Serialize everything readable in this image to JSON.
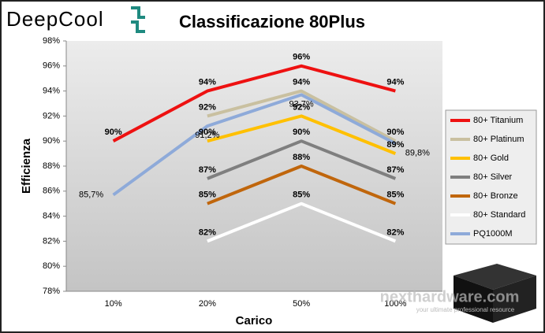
{
  "chart_data": {
    "type": "line",
    "brand": "DeepCool",
    "title": "Classificazione 80Plus",
    "xlabel": "Carico",
    "ylabel": "Efficienza",
    "watermark": "nexthardware.com",
    "watermark_sub": "your ultimate professional resource",
    "categories": [
      "10%",
      "20%",
      "50%",
      "100%"
    ],
    "ylim": [
      78,
      98
    ],
    "yticks": [
      {
        "value": 78,
        "label": "78%"
      },
      {
        "value": 80,
        "label": "80%"
      },
      {
        "value": 82,
        "label": "82%"
      },
      {
        "value": 84,
        "label": "84%"
      },
      {
        "value": 86,
        "label": "86%"
      },
      {
        "value": 88,
        "label": "88%"
      },
      {
        "value": 90,
        "label": "90%"
      },
      {
        "value": 92,
        "label": "92%"
      },
      {
        "value": 94,
        "label": "94%"
      },
      {
        "value": 96,
        "label": "96%"
      },
      {
        "value": 98,
        "label": "98%"
      }
    ],
    "legend": "right",
    "series": [
      {
        "name": "80+ Titanium",
        "color": "#ee1111",
        "values": [
          90,
          94,
          96,
          94
        ],
        "value_labels": [
          "90%",
          "94%",
          "96%",
          "94%"
        ]
      },
      {
        "name": "80+ Platinum",
        "color": "#c9c0a0",
        "values": [
          null,
          92,
          94,
          90
        ],
        "value_labels": [
          null,
          "92%",
          "94%",
          "90%"
        ]
      },
      {
        "name": "80+ Gold",
        "color": "#ffc000",
        "values": [
          null,
          90,
          92,
          89
        ],
        "value_labels": [
          null,
          "90%",
          "92%",
          "89%"
        ]
      },
      {
        "name": "80+ Silver",
        "color": "#7f7f7f",
        "values": [
          null,
          87,
          90,
          87
        ],
        "value_labels": [
          null,
          "87%",
          "90%",
          "87%"
        ]
      },
      {
        "name": "80+ Bronze",
        "color": "#c0660c",
        "values": [
          null,
          85,
          88,
          85
        ],
        "value_labels": [
          null,
          "85%",
          "88%",
          "85%"
        ]
      },
      {
        "name": "80+ Standard",
        "color": "#ffffff",
        "values": [
          null,
          82,
          85,
          82
        ],
        "value_labels": [
          null,
          "82%",
          "85%",
          "82%"
        ]
      },
      {
        "name": "PQ1000M",
        "color": "#8eaad9",
        "values": [
          85.7,
          91.2,
          93.7,
          89.8
        ],
        "value_labels": [
          "85,7%",
          "91,2%",
          "93,7%",
          "89,8%"
        ]
      }
    ]
  }
}
